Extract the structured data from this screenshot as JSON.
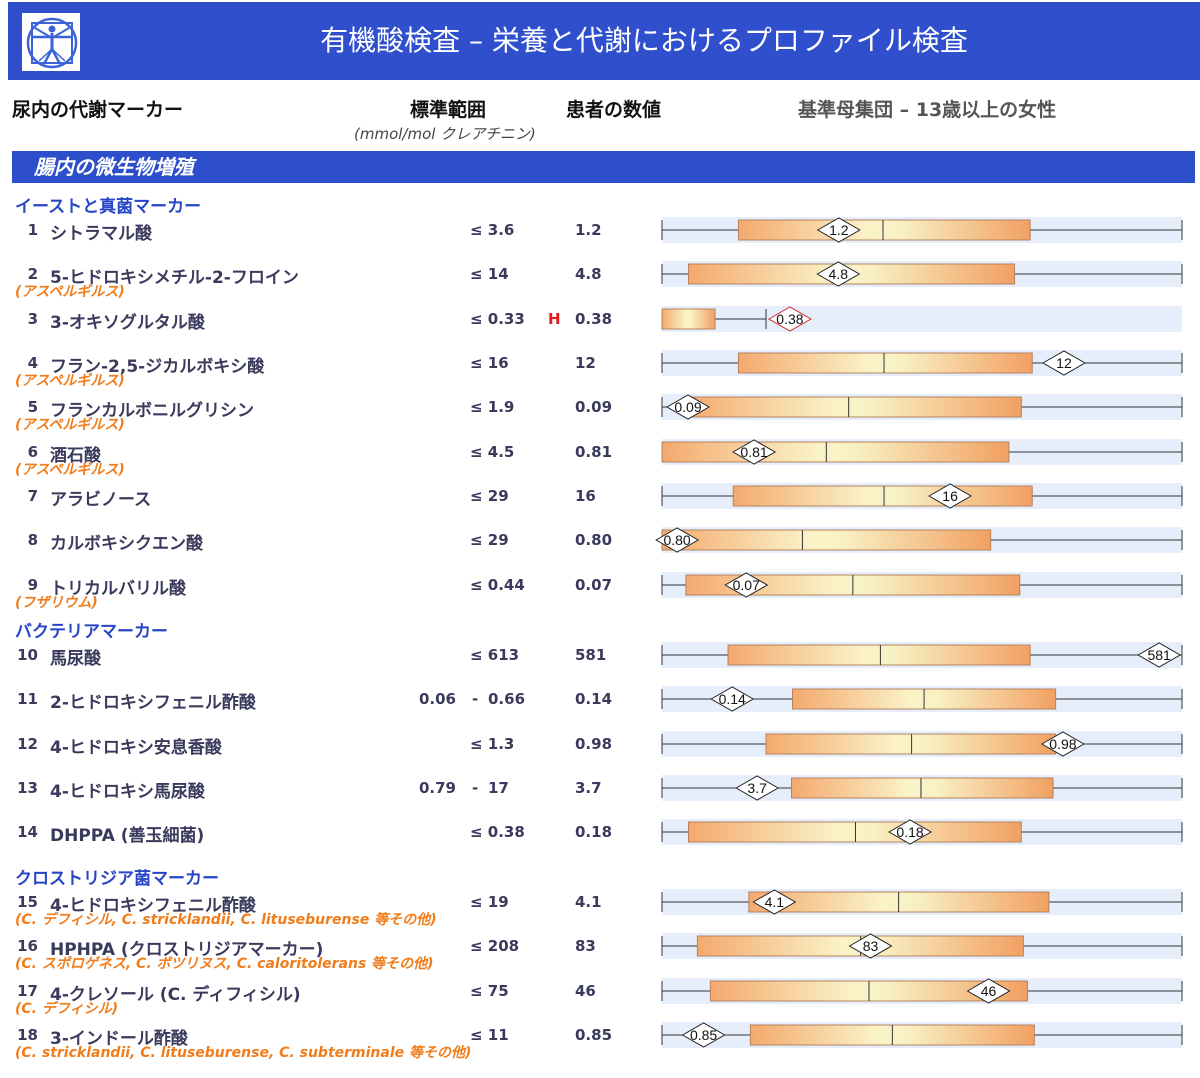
{
  "header": {
    "title": "有機酸検査 – 栄養と代謝におけるプロファイル検査",
    "logo_icon": "vitruvian-man-icon"
  },
  "columns": {
    "marker": "尿内の代謝マーカー",
    "reference": "標準範囲",
    "reference_unit": "(mmol/mol クレアチニン)",
    "patient": "患者の数値",
    "population": "基準母集団 – 13歳以上の女性"
  },
  "section": {
    "title": "腸内の微生物増殖"
  },
  "subsections": {
    "yeast": "イーストと真菌マーカー",
    "bacteria": "バクテリアマーカー",
    "clostridia": "クロストリジア菌マーカー"
  },
  "rows": [
    {
      "num": "1",
      "name": "シトラマル酸",
      "sub": "",
      "ref_low": "",
      "ref": "≤ 3.6",
      "flag": "",
      "value": "1.2"
    },
    {
      "num": "2",
      "name": "5-ヒドロキシメチル-2-フロイン",
      "sub": "(アスペルギルス)",
      "ref_low": "",
      "ref": "≤ 14",
      "flag": "",
      "value": "4.8"
    },
    {
      "num": "3",
      "name": "3-オキソグルタル酸",
      "sub": "",
      "ref_low": "",
      "ref": "≤ 0.33",
      "flag": "H",
      "value": "0.38"
    },
    {
      "num": "4",
      "name": "フラン-2,5-ジカルボキシ酸",
      "sub": "(アスペルギルス)",
      "ref_low": "",
      "ref": "≤ 16",
      "flag": "",
      "value": "12"
    },
    {
      "num": "5",
      "name": "フランカルボニルグリシン",
      "sub": "(アスペルギルス)",
      "ref_low": "",
      "ref": "≤ 1.9",
      "flag": "",
      "value": "0.09"
    },
    {
      "num": "6",
      "name": "酒石酸",
      "sub": "(アスペルギルス)",
      "ref_low": "",
      "ref": "≤ 4.5",
      "flag": "",
      "value": "0.81"
    },
    {
      "num": "7",
      "name": "アラビノース",
      "sub": "",
      "ref_low": "",
      "ref": "≤ 29",
      "flag": "",
      "value": "16"
    },
    {
      "num": "8",
      "name": "カルボキシクエン酸",
      "sub": "",
      "ref_low": "",
      "ref": "≤ 29",
      "flag": "",
      "value": "0.80"
    },
    {
      "num": "9",
      "name": "トリカルバリル酸",
      "sub": "(フザリウム)",
      "ref_low": "",
      "ref": "≤ 0.44",
      "flag": "",
      "value": "0.07"
    },
    {
      "num": "10",
      "name": "馬尿酸",
      "sub": "",
      "ref_low": "",
      "ref": "≤ 613",
      "flag": "",
      "value": "581"
    },
    {
      "num": "11",
      "name": "2-ヒドロキシフェニル酢酸",
      "sub": "",
      "ref_low": "0.06",
      "ref": "0.66",
      "flag": "",
      "value": "0.14"
    },
    {
      "num": "12",
      "name": "4-ヒドロキシ安息香酸",
      "sub": "",
      "ref_low": "",
      "ref": "≤ 1.3",
      "flag": "",
      "value": "0.98"
    },
    {
      "num": "13",
      "name": "4-ヒドロキシ馬尿酸",
      "sub": "",
      "ref_low": "0.79",
      "ref": "17",
      "flag": "",
      "value": "3.7"
    },
    {
      "num": "14",
      "name": "DHPPA (善玉細菌)",
      "sub": "",
      "ref_low": "",
      "ref": "≤ 0.38",
      "flag": "",
      "value": "0.18"
    },
    {
      "num": "15",
      "name": "4-ヒドロキシフェニル酢酸",
      "sub": "(C. デフィシル, C. stricklandii, C. lituseburense 等その他)",
      "ref_low": "",
      "ref": "≤ 19",
      "flag": "",
      "value": "4.1"
    },
    {
      "num": "16",
      "name": "HPHPA (クロストリジアマーカー)",
      "sub": "(C. スポロゲネス, C. ボツリヌス, C. caloritolerans 等その他)",
      "ref_low": "",
      "ref": "≤ 208",
      "flag": "",
      "value": "83"
    },
    {
      "num": "17",
      "name": "4-クレソール (C. ディフィシル)",
      "sub": "(C. デフィシル)",
      "ref_low": "",
      "ref": "≤ 75",
      "flag": "",
      "value": "46"
    },
    {
      "num": "18",
      "name": "3-インドール酢酸",
      "sub": "(C. stricklandii, C. lituseburense, C. subterminale 等その他)",
      "ref_low": "",
      "ref": "≤ 11",
      "flag": "",
      "value": "0.85"
    }
  ],
  "chart_data": {
    "type": "box",
    "scale": "each row plotted on its own scale relative to its reference-population distribution",
    "rows": [
      {
        "label": "1",
        "box_start": 0.147,
        "median": 0.425,
        "box_end": 0.708,
        "marker": 0.34,
        "value": "1.2",
        "whisker_start": 0.0,
        "whisker_end": 1.0,
        "out_of_range": false
      },
      {
        "label": "2",
        "box_start": 0.051,
        "median": null,
        "box_end": 0.678,
        "marker": 0.339,
        "value": "4.8",
        "whisker_start": 0.0,
        "whisker_end": 1.0,
        "out_of_range": false
      },
      {
        "label": "3",
        "box_start": 0.0,
        "median": null,
        "box_end": 0.102,
        "marker": 0.246,
        "value": "0.38",
        "whisker_start": 0.0,
        "whisker_end": 0.2,
        "out_of_range": true
      },
      {
        "label": "4",
        "box_start": 0.147,
        "median": 0.427,
        "box_end": 0.712,
        "marker": 0.773,
        "value": "12",
        "whisker_start": 0.0,
        "whisker_end": 1.0,
        "out_of_range": false
      },
      {
        "label": "5",
        "box_start": 0.042,
        "median": 0.359,
        "box_end": 0.691,
        "marker": 0.05,
        "value": "0.09",
        "whisker_start": 0.0,
        "whisker_end": 1.0,
        "out_of_range": false
      },
      {
        "label": "6",
        "box_start": 0.0,
        "median": 0.316,
        "box_end": 0.667,
        "marker": 0.177,
        "value": "0.81",
        "whisker_start": 0.0,
        "whisker_end": 1.0,
        "out_of_range": false
      },
      {
        "label": "7",
        "box_start": 0.137,
        "median": 0.427,
        "box_end": 0.712,
        "marker": 0.554,
        "value": "16",
        "whisker_start": 0.0,
        "whisker_end": 1.0,
        "out_of_range": false
      },
      {
        "label": "8",
        "box_start": 0.0,
        "median": 0.27,
        "box_end": 0.632,
        "marker": 0.029,
        "value": "0.80",
        "whisker_start": 0.0,
        "whisker_end": 1.0,
        "out_of_range": false
      },
      {
        "label": "9",
        "box_start": 0.046,
        "median": 0.367,
        "box_end": 0.688,
        "marker": 0.162,
        "value": "0.07",
        "whisker_start": 0.0,
        "whisker_end": 1.0,
        "out_of_range": false
      },
      {
        "label": "10",
        "box_start": 0.127,
        "median": 0.42,
        "box_end": 0.708,
        "marker": 0.956,
        "value": "581",
        "whisker_start": 0.0,
        "whisker_end": 1.0,
        "out_of_range": false
      },
      {
        "label": "11",
        "box_start": 0.251,
        "median": 0.504,
        "box_end": 0.757,
        "marker": 0.135,
        "value": "0.14",
        "whisker_start": 0.0,
        "whisker_end": 1.0,
        "out_of_range": false
      },
      {
        "label": "12",
        "box_start": 0.2,
        "median": 0.48,
        "box_end": 0.757,
        "marker": 0.771,
        "value": "0.98",
        "whisker_start": 0.0,
        "whisker_end": 1.0,
        "out_of_range": false
      },
      {
        "label": "13",
        "box_start": 0.249,
        "median": 0.498,
        "box_end": 0.752,
        "marker": 0.183,
        "value": "3.7",
        "whisker_start": 0.0,
        "whisker_end": 1.0,
        "out_of_range": false
      },
      {
        "label": "14",
        "box_start": 0.051,
        "median": 0.372,
        "box_end": 0.691,
        "marker": 0.477,
        "value": "0.18",
        "whisker_start": 0.0,
        "whisker_end": 1.0,
        "out_of_range": false
      },
      {
        "label": "15",
        "box_start": 0.167,
        "median": 0.455,
        "box_end": 0.744,
        "marker": 0.216,
        "value": "4.1",
        "whisker_start": 0.0,
        "whisker_end": 1.0,
        "out_of_range": false
      },
      {
        "label": "16",
        "box_start": 0.068,
        "median": 0.382,
        "box_end": 0.695,
        "marker": 0.401,
        "value": "83",
        "whisker_start": 0.0,
        "whisker_end": 1.0,
        "out_of_range": false
      },
      {
        "label": "17",
        "box_start": 0.093,
        "median": 0.398,
        "box_end": 0.703,
        "marker": 0.628,
        "value": "46",
        "whisker_start": 0.0,
        "whisker_end": 1.0,
        "out_of_range": false
      },
      {
        "label": "18",
        "box_start": 0.17,
        "median": 0.443,
        "box_end": 0.716,
        "marker": 0.08,
        "value": "0.85",
        "whisker_start": 0.0,
        "whisker_end": 1.0,
        "out_of_range": false
      }
    ]
  }
}
